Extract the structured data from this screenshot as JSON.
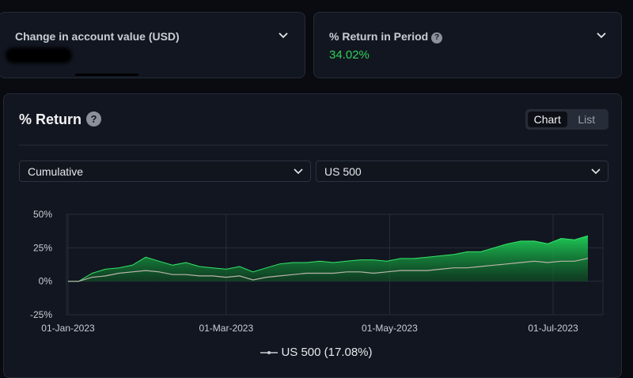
{
  "cards": {
    "change": {
      "title": "Change in account value (USD)"
    },
    "period": {
      "title": "% Return in Period",
      "value": "34.02%"
    }
  },
  "return_section": {
    "title": "% Return",
    "view_toggle": [
      "Chart",
      "List"
    ],
    "active_view": "Chart",
    "mode_select": {
      "selected": "Cumulative"
    },
    "benchmark_select": {
      "selected": "US 500"
    },
    "legend": "US 500 (17.08%)"
  },
  "colors": {
    "portfolio_fill": "#1fd45a",
    "benchmark_line": "#b9b4a8",
    "positive": "#2ed15b",
    "background": "#090b11",
    "card": "#121620"
  },
  "chart_data": {
    "type": "area",
    "x_tick_labels": [
      "01-Jan-2023",
      "01-Mar-2023",
      "01-May-2023",
      "01-Jul-2023"
    ],
    "y_tick_labels": [
      "50%",
      "25%",
      "0%",
      "-25%"
    ],
    "ylim": [
      -25,
      50
    ],
    "grid": true,
    "legend_position": "bottom-center",
    "series": [
      {
        "x": [
          "2023-01-01",
          "2023-01-05",
          "2023-01-10",
          "2023-01-15",
          "2023-01-20",
          "2023-01-25",
          "2023-01-30",
          "2023-02-04",
          "2023-02-09",
          "2023-02-14",
          "2023-02-19",
          "2023-02-24",
          "2023-03-01",
          "2023-03-06",
          "2023-03-11",
          "2023-03-16",
          "2023-03-21",
          "2023-03-26",
          "2023-03-31",
          "2023-04-05",
          "2023-04-10",
          "2023-04-15",
          "2023-04-20",
          "2023-04-25",
          "2023-04-30",
          "2023-05-05",
          "2023-05-10",
          "2023-05-15",
          "2023-05-20",
          "2023-05-25",
          "2023-05-30",
          "2023-06-04",
          "2023-06-09",
          "2023-06-14",
          "2023-06-19",
          "2023-06-24",
          "2023-06-29",
          "2023-07-04",
          "2023-07-09",
          "2023-07-14"
        ],
        "y": [
          0,
          0,
          6,
          9,
          10,
          12,
          18,
          15,
          12,
          14,
          11,
          10,
          9,
          11,
          7,
          10,
          13,
          14,
          14,
          15,
          14,
          15,
          16,
          16,
          15,
          17,
          17,
          18,
          19,
          20,
          22,
          22,
          25,
          28,
          30,
          30,
          28,
          32,
          31,
          34.02
        ]
      },
      {
        "name": "US 500",
        "x": [
          "2023-01-01",
          "2023-01-05",
          "2023-01-10",
          "2023-01-15",
          "2023-01-20",
          "2023-01-25",
          "2023-01-30",
          "2023-02-04",
          "2023-02-09",
          "2023-02-14",
          "2023-02-19",
          "2023-02-24",
          "2023-03-01",
          "2023-03-06",
          "2023-03-11",
          "2023-03-16",
          "2023-03-21",
          "2023-03-26",
          "2023-03-31",
          "2023-04-05",
          "2023-04-10",
          "2023-04-15",
          "2023-04-20",
          "2023-04-25",
          "2023-04-30",
          "2023-05-05",
          "2023-05-10",
          "2023-05-15",
          "2023-05-20",
          "2023-05-25",
          "2023-05-30",
          "2023-06-04",
          "2023-06-09",
          "2023-06-14",
          "2023-06-19",
          "2023-06-24",
          "2023-06-29",
          "2023-07-04",
          "2023-07-09",
          "2023-07-14"
        ],
        "y": [
          0,
          0,
          3,
          4,
          6,
          7,
          8,
          7,
          5,
          5,
          4,
          4,
          3,
          4,
          1,
          3,
          4,
          5,
          6,
          6,
          6,
          7,
          7,
          6,
          7,
          8,
          8,
          8,
          9,
          10,
          10,
          11,
          12,
          13,
          14,
          15,
          14,
          15,
          15,
          17.08
        ]
      }
    ]
  }
}
